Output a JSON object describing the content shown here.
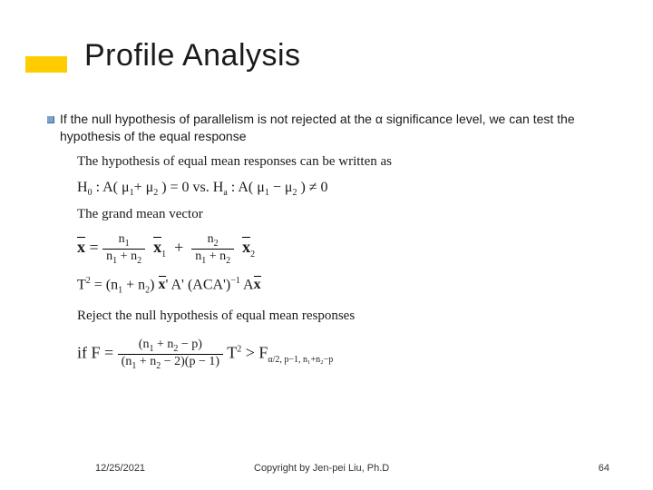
{
  "accent_color": "#ffcc00",
  "bullet_color": "#7aa3cc",
  "title": "Profile Analysis",
  "lead_text": "If the null hypothesis of parallelism is not rejected at the α significance level, we can test the hypothesis of the equal response",
  "math": {
    "line1": "The hypothesis of equal mean responses can be written as",
    "line2_h0_label": "H",
    "line2_h0_sub": "0",
    "line2_h0_body": " : A( μ",
    "line2_mu1sub": "1",
    "line2_plus": "+ μ",
    "line2_mu2sub": "2",
    "line2_eq0": " ) = 0  vs.  H",
    "line2_ha_sub": "a",
    "line2_ha_body": " :    A( μ",
    "line2_neq": " ) ≠ 0",
    "line3": "The grand mean vector",
    "line4_xbar": "x",
    "line4_eq": " = ",
    "line4_n1": "n",
    "line4_s1": "1",
    "line4_n2": "n",
    "line4_s2": "2",
    "line4_plus": " + ",
    "line4_x1": "x",
    "line4_x2": "x",
    "line5_t2": "T",
    "line5_sup2": "2",
    "line5_body": " = (n",
    "line5_s1": "1",
    "line5_pn2": " + n",
    "line5_s2": "2",
    "line5_rest": ") ",
    "line5_xbar": "x",
    "line5_prime": "' A' (ACA')",
    "line5_inv": "−1",
    "line5_ax": " A",
    "line6": "Reject the null hypothesis of equal mean responses",
    "line7_if": "if  F = ",
    "line7_num_a": "(n",
    "line7_num_b": " + n",
    "line7_num_c": " − p)",
    "line7_den_a": "(n",
    "line7_den_b": " + n",
    "line7_den_c": " − 2)(p − 1)",
    "line7_t2": " T",
    "line7_gt": " > F",
    "line7_fsub": "α/2, p−1, n₁+n₂−p"
  },
  "footer": {
    "date": "12/25/2021",
    "copyright": "Copyright by Jen-pei Liu, Ph.D",
    "page": "64"
  }
}
